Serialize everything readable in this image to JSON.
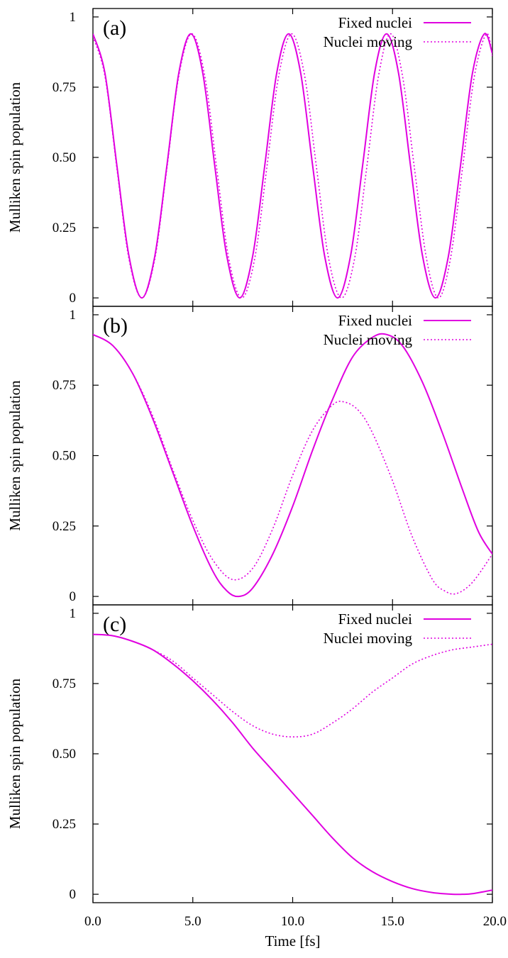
{
  "colors": {
    "series": "#e000e0",
    "axes": "#000000",
    "background": "#ffffff"
  },
  "chart_data": [
    {
      "type": "line",
      "panel_label": "(a)",
      "xlabel": "",
      "ylabel": "Mulliken spin population",
      "xlim": [
        0,
        20
      ],
      "ylim": [
        -0.03,
        1.03
      ],
      "yticks": [
        "0",
        "0.25",
        "0.50",
        "0.75",
        "1"
      ],
      "legend": {
        "placement": "top-right",
        "entries": [
          "Fixed nuclei",
          "Nuclei moving"
        ]
      },
      "grid": false,
      "series": [
        {
          "name": "Fixed nuclei",
          "style": "solid",
          "x": [
            0,
            0.6,
            1.2,
            1.8,
            2.45,
            3.1,
            3.7,
            4.3,
            4.9,
            5.5,
            6.1,
            6.7,
            7.35,
            8.0,
            8.6,
            9.2,
            9.8,
            10.4,
            11.0,
            11.6,
            12.25,
            12.9,
            13.5,
            14.1,
            14.7,
            15.3,
            15.9,
            16.5,
            17.15,
            17.8,
            18.4,
            19.0,
            19.6,
            20.0
          ],
          "y": [
            0.94,
            0.8,
            0.47,
            0.15,
            0.0,
            0.15,
            0.47,
            0.8,
            0.94,
            0.8,
            0.47,
            0.15,
            0.0,
            0.15,
            0.47,
            0.8,
            0.94,
            0.8,
            0.47,
            0.15,
            0.0,
            0.15,
            0.47,
            0.8,
            0.94,
            0.8,
            0.47,
            0.15,
            0.0,
            0.15,
            0.47,
            0.8,
            0.94,
            0.87
          ]
        },
        {
          "name": "Nuclei moving",
          "style": "dotted",
          "x": [
            0,
            0.6,
            1.2,
            1.8,
            2.45,
            3.1,
            3.7,
            4.3,
            4.95,
            5.6,
            6.2,
            6.8,
            7.45,
            8.1,
            8.7,
            9.3,
            9.95,
            10.6,
            11.2,
            11.8,
            12.45,
            13.1,
            13.7,
            14.3,
            14.9,
            15.5,
            16.1,
            16.7,
            17.3,
            17.9,
            18.5,
            19.1,
            19.7,
            20.0
          ],
          "y": [
            0.93,
            0.79,
            0.46,
            0.14,
            0.0,
            0.14,
            0.46,
            0.79,
            0.94,
            0.79,
            0.46,
            0.14,
            0.0,
            0.14,
            0.46,
            0.79,
            0.94,
            0.79,
            0.46,
            0.14,
            0.0,
            0.14,
            0.46,
            0.79,
            0.94,
            0.79,
            0.46,
            0.14,
            0.0,
            0.14,
            0.46,
            0.79,
            0.94,
            0.86
          ]
        }
      ]
    },
    {
      "type": "line",
      "panel_label": "(b)",
      "xlabel": "",
      "ylabel": "Mulliken spin population",
      "xlim": [
        0,
        20
      ],
      "ylim": [
        -0.03,
        1.03
      ],
      "yticks": [
        "0",
        "0.25",
        "0.50",
        "0.75",
        "1"
      ],
      "legend": {
        "placement": "top-right",
        "entries": [
          "Fixed nuclei",
          "Nuclei moving"
        ]
      },
      "grid": false,
      "series": [
        {
          "name": "Fixed nuclei",
          "style": "solid",
          "x": [
            0,
            1,
            2,
            3,
            4,
            5,
            6,
            6.7,
            7.3,
            8,
            9,
            10,
            11,
            12,
            13,
            14,
            14.7,
            15.5,
            16.5,
            17.5,
            18.5,
            19.3,
            20.0
          ],
          "y": [
            0.93,
            0.89,
            0.79,
            0.63,
            0.44,
            0.25,
            0.09,
            0.02,
            0.0,
            0.03,
            0.15,
            0.32,
            0.52,
            0.7,
            0.85,
            0.92,
            0.93,
            0.89,
            0.76,
            0.58,
            0.38,
            0.23,
            0.15
          ]
        },
        {
          "name": "Nuclei moving",
          "style": "dotted",
          "x": [
            0,
            1,
            2,
            3,
            4,
            5,
            6,
            7,
            8,
            9,
            10,
            11,
            12,
            12.6,
            13.3,
            14,
            15,
            16,
            17,
            17.6,
            18.2,
            19,
            20.0
          ],
          "y": [
            0.93,
            0.89,
            0.79,
            0.64,
            0.45,
            0.27,
            0.13,
            0.06,
            0.1,
            0.24,
            0.43,
            0.59,
            0.68,
            0.69,
            0.66,
            0.58,
            0.41,
            0.21,
            0.06,
            0.02,
            0.01,
            0.05,
            0.15
          ]
        }
      ]
    },
    {
      "type": "line",
      "panel_label": "(c)",
      "xlabel": "Time [fs]",
      "ylabel": "Mulliken spin population",
      "xlim": [
        0,
        20
      ],
      "ylim": [
        -0.03,
        1.03
      ],
      "yticks": [
        "0",
        "0.25",
        "0.50",
        "0.75",
        "1"
      ],
      "xticks": [
        "0.0",
        "5.0",
        "10.0",
        "15.0",
        "20.0"
      ],
      "legend": {
        "placement": "top-right",
        "entries": [
          "Fixed nuclei",
          "Nuclei moving"
        ]
      },
      "grid": false,
      "series": [
        {
          "name": "Fixed nuclei",
          "style": "solid",
          "x": [
            0,
            1,
            2,
            3,
            4,
            5,
            6,
            7,
            8,
            9,
            10,
            11,
            12,
            13,
            14,
            15,
            16,
            17,
            18,
            18.5,
            19,
            20.0
          ],
          "y": [
            0.925,
            0.92,
            0.9,
            0.87,
            0.82,
            0.76,
            0.69,
            0.61,
            0.52,
            0.44,
            0.36,
            0.28,
            0.2,
            0.13,
            0.08,
            0.045,
            0.02,
            0.006,
            0.0,
            0.0,
            0.002,
            0.015
          ]
        },
        {
          "name": "Nuclei moving",
          "style": "dotted",
          "x": [
            0,
            1,
            2,
            3,
            4,
            5,
            6,
            7,
            8,
            9,
            10,
            11,
            12,
            13,
            14,
            15,
            16,
            17,
            18,
            19,
            20.0
          ],
          "y": [
            0.925,
            0.92,
            0.9,
            0.87,
            0.83,
            0.77,
            0.71,
            0.65,
            0.6,
            0.57,
            0.56,
            0.57,
            0.61,
            0.66,
            0.72,
            0.77,
            0.82,
            0.85,
            0.87,
            0.88,
            0.89
          ]
        }
      ]
    }
  ]
}
